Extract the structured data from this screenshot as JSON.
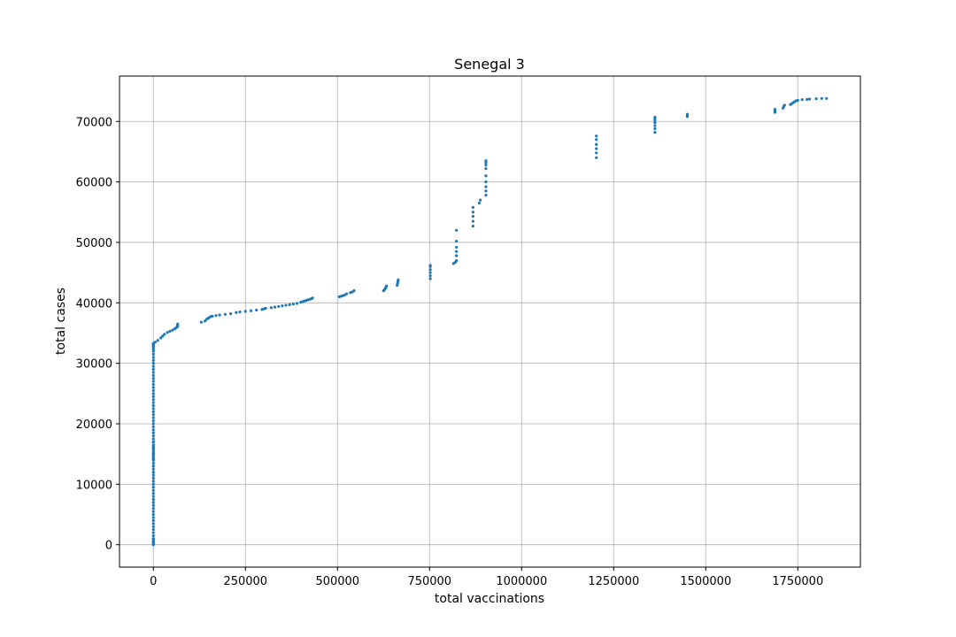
{
  "chart_data": {
    "type": "scatter",
    "title": "Senegal 3",
    "xlabel": "total vaccinations",
    "ylabel": "total cases",
    "xlim": [
      -92000,
      1920000
    ],
    "ylim": [
      -3700,
      77500
    ],
    "xticks": [
      0,
      250000,
      500000,
      750000,
      1000000,
      1250000,
      1500000,
      1750000
    ],
    "xtick_labels": [
      "0",
      "250000",
      "500000",
      "750000",
      "1000000",
      "1250000",
      "1500000",
      "1750000"
    ],
    "yticks": [
      0,
      10000,
      20000,
      30000,
      40000,
      50000,
      60000,
      70000
    ],
    "ytick_labels": [
      "0",
      "10000",
      "20000",
      "30000",
      "40000",
      "50000",
      "60000",
      "70000"
    ],
    "grid": true,
    "marker_color": "#1f77b4",
    "series": [
      {
        "x": [
          0,
          0,
          0,
          0,
          0,
          0,
          0,
          0,
          0,
          0,
          0,
          0,
          0,
          0,
          0,
          0,
          0,
          0,
          0,
          0,
          0,
          0,
          0,
          0,
          0,
          0,
          0,
          0,
          0,
          0,
          0,
          0,
          0,
          0,
          0,
          0,
          0,
          0,
          0,
          0,
          0,
          0,
          0,
          0,
          0,
          0,
          0,
          0,
          0,
          0,
          0,
          0,
          0,
          0,
          0,
          0,
          0,
          0,
          0,
          0,
          0,
          0,
          0,
          0,
          0,
          0,
          0,
          0,
          0,
          0,
          0,
          0,
          0,
          0,
          0,
          0,
          0,
          0,
          0,
          0,
          0,
          0,
          0,
          0,
          0,
          0,
          0,
          0,
          0,
          0,
          5000,
          12000,
          20000,
          25000,
          30000,
          38000,
          45000,
          52000,
          58000,
          62000,
          64000,
          66000,
          66000,
          66000,
          130000,
          140000,
          145000,
          150000,
          155000,
          160000,
          170000,
          180000,
          195000,
          210000,
          225000,
          235000,
          250000,
          265000,
          280000,
          295000,
          300000,
          305000,
          320000,
          330000,
          340000,
          350000,
          360000,
          370000,
          380000,
          390000,
          400000,
          405000,
          410000,
          415000,
          420000,
          425000,
          430000,
          432000,
          505000,
          510000,
          515000,
          520000,
          525000,
          535000,
          540000,
          545000,
          625000,
          628000,
          630000,
          632000,
          633000,
          662000,
          663000,
          664000,
          665000,
          752000,
          752000,
          752000,
          752000,
          752000,
          752000,
          815000,
          820000,
          823000,
          823000,
          823000,
          823000,
          823000,
          823000,
          868000,
          868000,
          868000,
          868000,
          868000,
          885000,
          888000,
          903000,
          903000,
          903000,
          903000,
          903000,
          903000,
          903000,
          903000,
          903000,
          1203000,
          1203000,
          1203000,
          1203000,
          1203000,
          1203000,
          1362000,
          1362000,
          1362000,
          1362000,
          1362000,
          1362000,
          1362000,
          1450000,
          1450000,
          1450000,
          1688000,
          1688000,
          1688000,
          1710000,
          1712000,
          1714000,
          1730000,
          1735000,
          1740000,
          1745000,
          1750000,
          1762000,
          1775000,
          1782000,
          1800000,
          1815000,
          1828000
        ],
        "y": [
          0,
          100,
          300,
          500,
          800,
          1000,
          1500,
          2000,
          2500,
          3000,
          3500,
          4000,
          4500,
          5000,
          5500,
          6000,
          6500,
          7000,
          7500,
          8000,
          8500,
          9000,
          9500,
          10000,
          10500,
          11000,
          11500,
          12000,
          12500,
          13000,
          13500,
          14000,
          14200,
          14500,
          14800,
          15000,
          15200,
          15500,
          15800,
          16000,
          16200,
          16500,
          17000,
          17500,
          18000,
          18500,
          19000,
          19500,
          20000,
          20500,
          21000,
          21500,
          22000,
          22500,
          23000,
          23500,
          24000,
          24500,
          25000,
          25500,
          26000,
          26500,
          27000,
          27500,
          28000,
          28500,
          29000,
          29500,
          30000,
          30500,
          31000,
          31500,
          32000,
          32300,
          32600,
          32800,
          33000,
          33100,
          33200,
          33300,
          12000,
          13000,
          14000,
          15000,
          16000,
          17000,
          500,
          200,
          1000,
          16500,
          33500,
          33800,
          34200,
          34500,
          34800,
          35100,
          35300,
          35500,
          35700,
          35900,
          36000,
          36100,
          36300,
          36500,
          36800,
          37000,
          37300,
          37500,
          37700,
          37800,
          37900,
          38000,
          38100,
          38200,
          38400,
          38500,
          38600,
          38700,
          38800,
          38900,
          39000,
          39100,
          39200,
          39300,
          39400,
          39500,
          39600,
          39700,
          39800,
          39900,
          40100,
          40200,
          40300,
          40400,
          40500,
          40600,
          40700,
          40800,
          41000,
          41100,
          41200,
          41300,
          41500,
          41700,
          41800,
          42000,
          42000,
          42200,
          42400,
          42600,
          42800,
          42900,
          43200,
          43500,
          43800,
          44000,
          44500,
          45000,
          45500,
          46000,
          46200,
          46500,
          46700,
          47000,
          47800,
          48500,
          49200,
          50200,
          52000,
          52700,
          53500,
          54300,
          55000,
          55800,
          56500,
          57000,
          57800,
          58500,
          59200,
          60000,
          61000,
          62200,
          62800,
          63200,
          63500,
          64000,
          64800,
          65500,
          66200,
          67000,
          67600,
          68200,
          68800,
          69300,
          69800,
          70200,
          70500,
          70700,
          70800,
          71000,
          71200,
          71500,
          71800,
          72000,
          72200,
          72500,
          72700,
          72800,
          73000,
          73200,
          73400,
          73500,
          73600,
          73650,
          73700,
          73750,
          73800,
          73800
        ]
      }
    ]
  }
}
